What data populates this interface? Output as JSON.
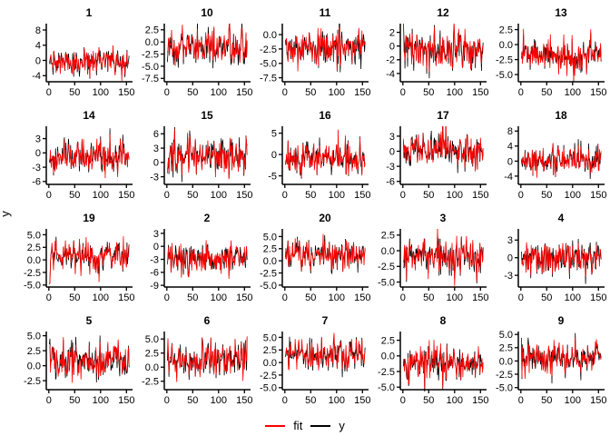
{
  "figure": {
    "ylab": "y",
    "background": "#ffffff"
  },
  "legend": {
    "items": [
      {
        "label": "fit",
        "color": "#ff0000"
      },
      {
        "label": "y",
        "color": "#000000"
      }
    ]
  },
  "chart_data": {
    "type": "line",
    "title": "",
    "xlabel": "",
    "ylabel": "y",
    "legend_position": "bottom-center",
    "grid": false,
    "x_axis": {
      "ticks": [
        0,
        50,
        100,
        150
      ],
      "tick_labels": [
        "0",
        "50",
        "100",
        "150"
      ],
      "range": [
        -5,
        160
      ],
      "n_points": 155
    },
    "series_names": [
      "fit",
      "y"
    ],
    "series_colors": {
      "fit": "#ff0000",
      "y": "#000000"
    },
    "series_note": "Two highly correlated noisy time series per facet; red 'fit' drawn over black 'y'; values estimated from axes and regenerated with seeded pseudo-random noise.",
    "facets": [
      {
        "title": "1",
        "y_tick_values": [
          8,
          4,
          0,
          -4
        ],
        "y_tick_labels": [
          "8",
          "4",
          "0",
          "-4"
        ],
        "ylim": [
          -5.6,
          9.2
        ],
        "gen": {
          "seed": 101,
          "mean": -0.3,
          "sd": 1.9
        }
      },
      {
        "title": "10",
        "y_tick_values": [
          2.5,
          0,
          -2.5,
          -5,
          -7.5
        ],
        "y_tick_labels": [
          "2.5",
          "0.0",
          "-2.5",
          "-5.0",
          "-7.5"
        ],
        "ylim": [
          -8.2,
          3.4
        ],
        "gen": {
          "seed": 102,
          "mean": -1.2,
          "sd": 2.0
        }
      },
      {
        "title": "11",
        "y_tick_values": [
          0,
          -2.5,
          -5,
          -7.5
        ],
        "y_tick_labels": [
          "0.0",
          "-2.5",
          "-5.0",
          "-7.5"
        ],
        "ylim": [
          -8.2,
          1.6
        ],
        "gen": {
          "seed": 103,
          "mean": -2.2,
          "sd": 1.6
        }
      },
      {
        "title": "12",
        "y_tick_values": [
          2,
          0,
          -2,
          -4
        ],
        "y_tick_labels": [
          "2",
          "0",
          "-2",
          "-4"
        ],
        "ylim": [
          -5.2,
          3.0
        ],
        "gen": {
          "seed": 104,
          "mean": -0.7,
          "sd": 1.5
        }
      },
      {
        "title": "13",
        "y_tick_values": [
          2.5,
          0,
          -2.5,
          -5
        ],
        "y_tick_labels": [
          "2.5",
          "0.0",
          "-2.5",
          "-5.0"
        ],
        "ylim": [
          -6.2,
          3.2
        ],
        "gen": {
          "seed": 105,
          "mean": -1.6,
          "sd": 1.5
        }
      },
      {
        "title": "14",
        "y_tick_values": [
          3,
          0,
          -3,
          -6
        ],
        "y_tick_labels": [
          "3",
          "0",
          "-3",
          "-6"
        ],
        "ylim": [
          -6.6,
          5.2
        ],
        "gen": {
          "seed": 106,
          "mean": -0.8,
          "sd": 1.9
        }
      },
      {
        "title": "15",
        "y_tick_values": [
          6,
          3,
          0,
          -3
        ],
        "y_tick_labels": [
          "6",
          "3",
          "0",
          "-3"
        ],
        "ylim": [
          -4.6,
          7.2
        ],
        "gen": {
          "seed": 107,
          "mean": 1.5,
          "sd": 1.9
        }
      },
      {
        "title": "16",
        "y_tick_values": [
          5,
          0,
          -5
        ],
        "y_tick_labels": [
          "5",
          "0",
          "-5"
        ],
        "ylim": [
          -7.0,
          6.2
        ],
        "gen": {
          "seed": 108,
          "mean": -1.0,
          "sd": 2.0
        }
      },
      {
        "title": "17",
        "y_tick_values": [
          3,
          0,
          -3,
          -6
        ],
        "y_tick_labels": [
          "3",
          "0",
          "-3",
          "-6"
        ],
        "ylim": [
          -6.6,
          4.6
        ],
        "gen": {
          "seed": 109,
          "mean": 0.3,
          "sd": 1.9
        }
      },
      {
        "title": "18",
        "y_tick_values": [
          8,
          4,
          0,
          -4
        ],
        "y_tick_labels": [
          "8",
          "4",
          "0",
          "-4"
        ],
        "ylim": [
          -6.2,
          8.8
        ],
        "gen": {
          "seed": 110,
          "mean": 0.2,
          "sd": 1.9
        }
      },
      {
        "title": "19",
        "y_tick_values": [
          5,
          2.5,
          0,
          -2.5,
          -5
        ],
        "y_tick_labels": [
          "5.0",
          "2.5",
          "0.0",
          "-2.5",
          "-5.0"
        ],
        "ylim": [
          -5.4,
          5.8
        ],
        "gen": {
          "seed": 111,
          "mean": 0.6,
          "sd": 1.6,
          "start_dip": -4.8
        }
      },
      {
        "title": "2",
        "y_tick_values": [
          3,
          0,
          -3,
          -6,
          -9
        ],
        "y_tick_labels": [
          "3",
          "0",
          "-3",
          "-6",
          "-9"
        ],
        "ylim": [
          -9.4,
          3.6
        ],
        "gen": {
          "seed": 112,
          "mean": -2.6,
          "sd": 2.0
        }
      },
      {
        "title": "20",
        "y_tick_values": [
          5,
          2.5,
          0,
          -2.5,
          -5
        ],
        "y_tick_labels": [
          "5.0",
          "2.5",
          "0.0",
          "-2.5",
          "-5.0"
        ],
        "ylim": [
          -5.4,
          6.2
        ],
        "gen": {
          "seed": 113,
          "mean": 1.4,
          "sd": 1.6
        }
      },
      {
        "title": "3",
        "y_tick_values": [
          2.5,
          0,
          -2.5,
          -5
        ],
        "y_tick_labels": [
          "2.5",
          "0.0",
          "-2.5",
          "-5.0"
        ],
        "ylim": [
          -5.8,
          3.2
        ],
        "gen": {
          "seed": 114,
          "mean": -1.0,
          "sd": 1.5
        }
      },
      {
        "title": "4",
        "y_tick_values": [
          3,
          0,
          -3
        ],
        "y_tick_labels": [
          "3",
          "0",
          "-3"
        ],
        "ylim": [
          -5.0,
          4.6
        ],
        "gen": {
          "seed": 115,
          "mean": -0.2,
          "sd": 1.6
        }
      },
      {
        "title": "5",
        "y_tick_values": [
          5,
          2.5,
          0,
          -2.5
        ],
        "y_tick_labels": [
          "5.0",
          "2.5",
          "0.0",
          "-2.5"
        ],
        "ylim": [
          -4.0,
          5.4
        ],
        "gen": {
          "seed": 116,
          "mean": 0.9,
          "sd": 1.5
        }
      },
      {
        "title": "6",
        "y_tick_values": [
          5,
          2.5,
          0,
          -2.5
        ],
        "y_tick_labels": [
          "5.0",
          "2.5",
          "0.0",
          "-2.5"
        ],
        "ylim": [
          -4.0,
          6.0
        ],
        "gen": {
          "seed": 117,
          "mean": 1.4,
          "sd": 1.6
        }
      },
      {
        "title": "7",
        "y_tick_values": [
          5,
          2.5,
          0,
          -2.5,
          -5
        ],
        "y_tick_labels": [
          "5.0",
          "2.5",
          "0.0",
          "-2.5",
          "-5.0"
        ],
        "ylim": [
          -5.4,
          5.8
        ],
        "gen": {
          "seed": 118,
          "mean": 1.4,
          "sd": 1.6
        }
      },
      {
        "title": "8",
        "y_tick_values": [
          2.5,
          0,
          -2.5,
          -5
        ],
        "y_tick_labels": [
          "2.5",
          "0.0",
          "-2.5",
          "-5.0"
        ],
        "ylim": [
          -5.4,
          3.6
        ],
        "gen": {
          "seed": 119,
          "mean": -1.3,
          "sd": 1.5
        }
      },
      {
        "title": "9",
        "y_tick_values": [
          5,
          2.5,
          0,
          -2.5,
          -5
        ],
        "y_tick_labels": [
          "5.0",
          "2.5",
          "0.0",
          "-2.5",
          "-5.0"
        ],
        "ylim": [
          -5.4,
          5.2
        ],
        "gen": {
          "seed": 120,
          "mean": 0.5,
          "sd": 1.6
        }
      }
    ]
  }
}
